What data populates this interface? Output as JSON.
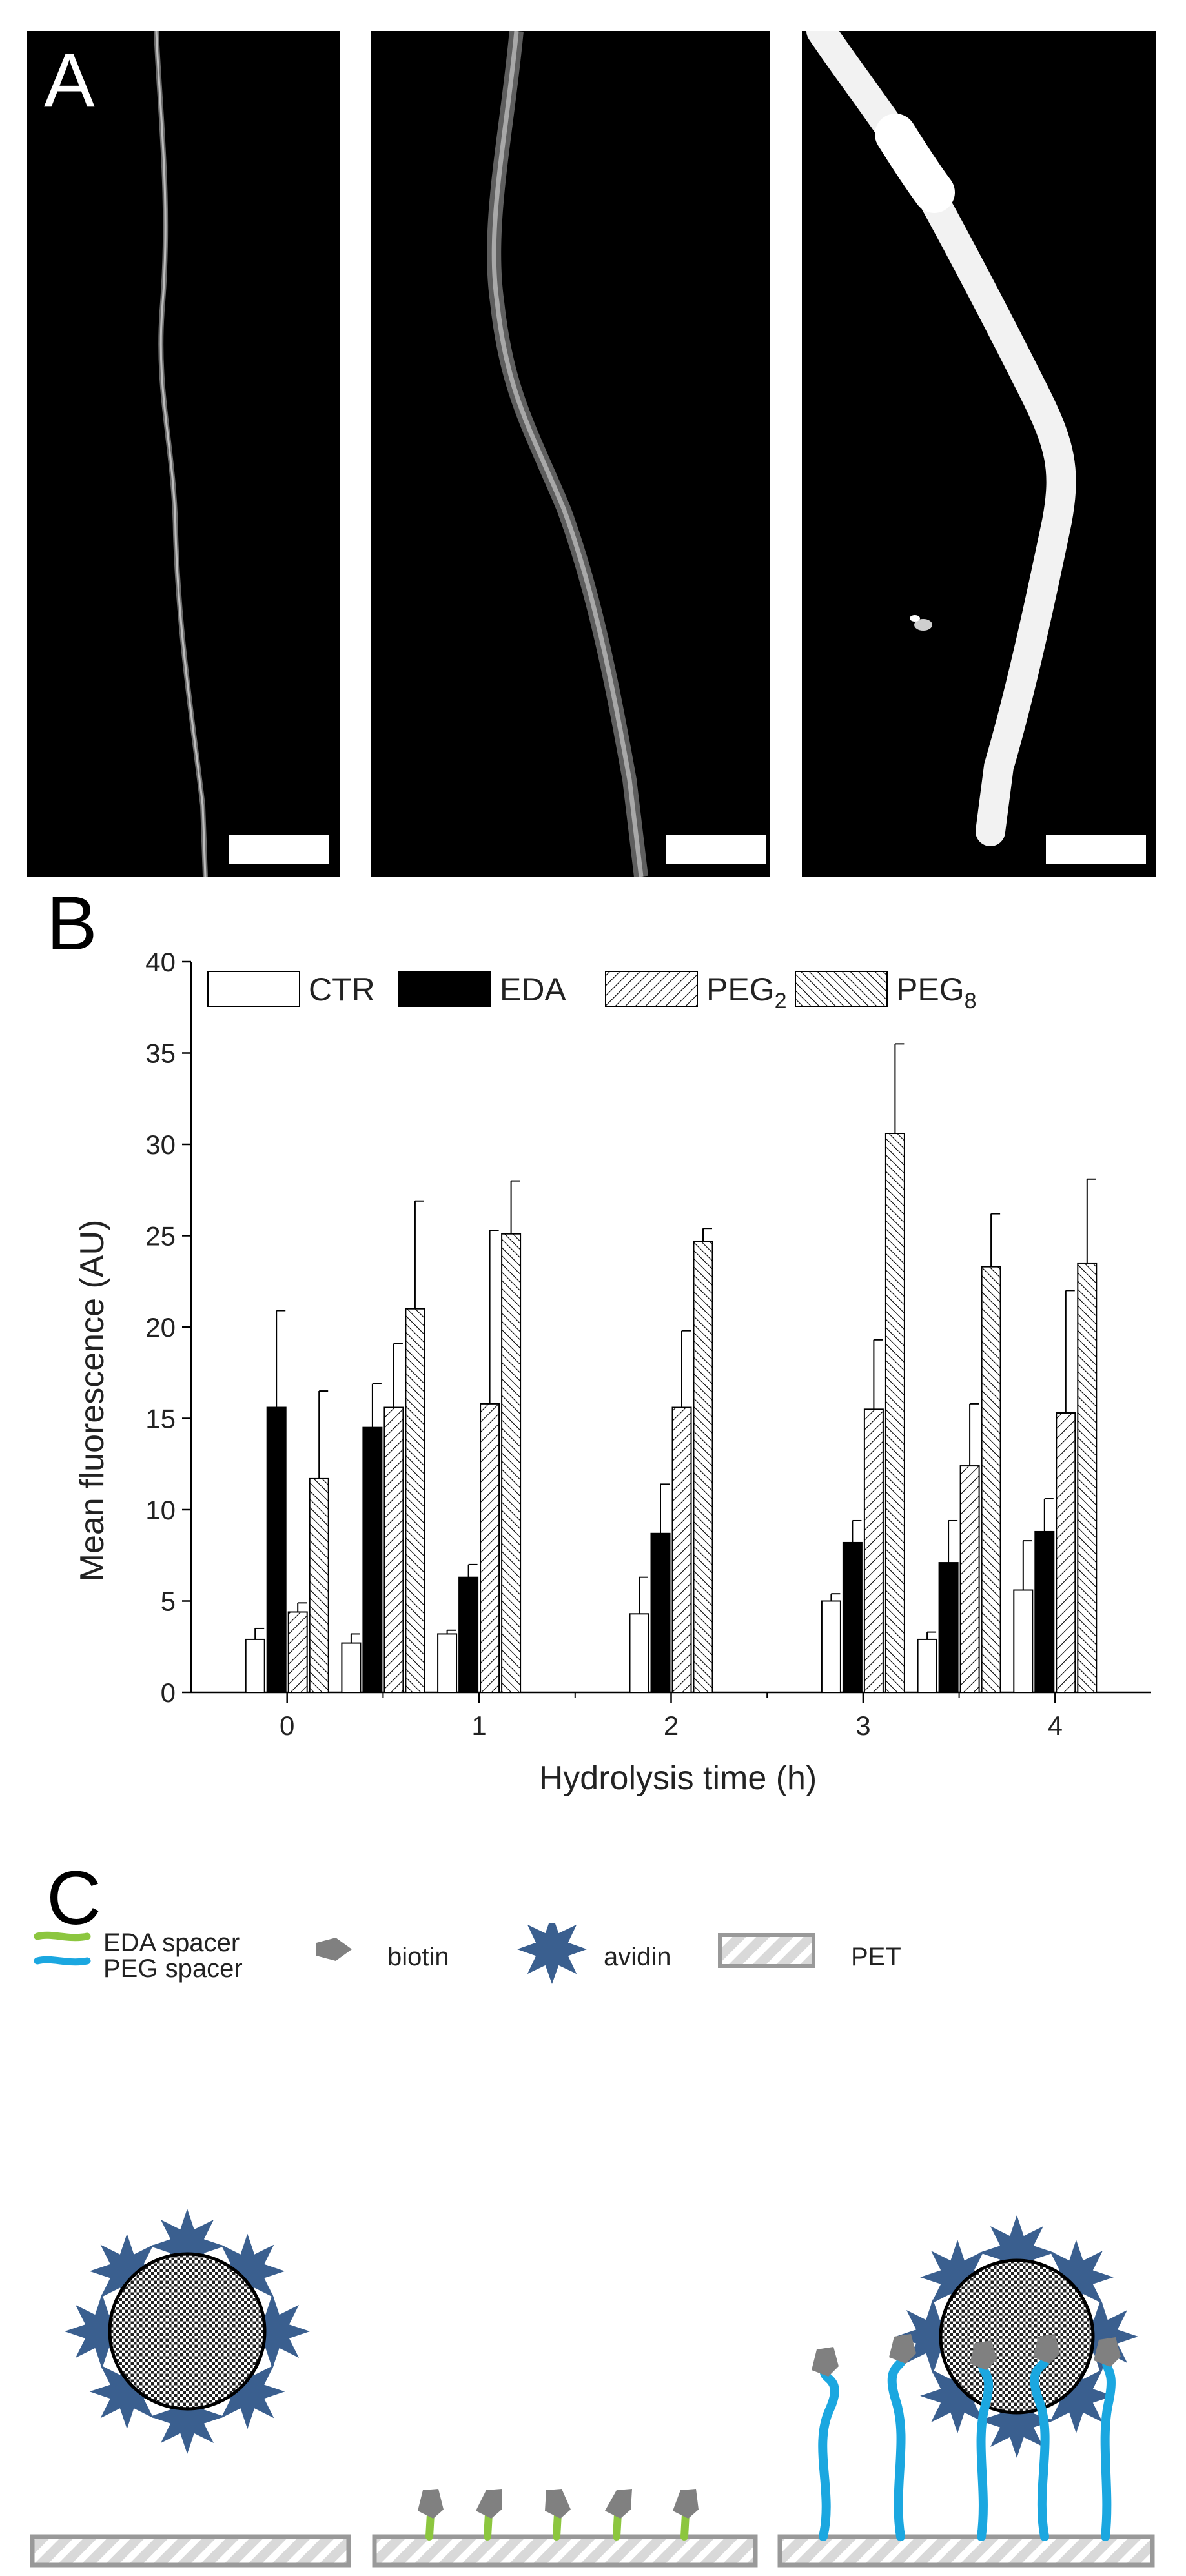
{
  "panels": {
    "a": {
      "letter": "A"
    },
    "b": {
      "letter": "B"
    },
    "c": {
      "letter": "C"
    }
  },
  "chart_data": {
    "type": "bar",
    "xlabel": "Hydrolysis time (h)",
    "ylabel": "Mean fluorescence (AU)",
    "ylim": [
      0,
      40
    ],
    "yticks": [
      0,
      5,
      10,
      15,
      20,
      25,
      30,
      35,
      40
    ],
    "xlim": [
      -0.5,
      4.5
    ],
    "xticks": [
      0,
      1,
      2,
      3,
      4
    ],
    "minor_xticks": [
      0.5,
      1.5,
      2.5,
      3.5
    ],
    "grid": false,
    "legend_position": "top",
    "group_x": [
      0,
      0.5,
      1,
      2,
      3,
      3.5,
      4
    ],
    "series": [
      {
        "name": "CTR",
        "fill": "white",
        "values": [
          2.9,
          2.7,
          3.2,
          4.3,
          5.0,
          2.9,
          5.6
        ],
        "errors": [
          0.6,
          0.5,
          0.2,
          2.0,
          0.4,
          0.4,
          2.7
        ]
      },
      {
        "name": "EDA",
        "fill": "black",
        "values": [
          15.6,
          14.5,
          6.3,
          8.7,
          8.2,
          7.1,
          8.8
        ],
        "errors": [
          5.3,
          2.4,
          0.7,
          2.7,
          1.2,
          2.3,
          1.8
        ]
      },
      {
        "name": "PEG2",
        "fill": "hatch-forward",
        "values": [
          4.4,
          15.6,
          15.8,
          15.6,
          15.5,
          12.4,
          15.3
        ],
        "errors": [
          0.5,
          3.5,
          9.5,
          4.2,
          3.8,
          3.4,
          6.7
        ]
      },
      {
        "name": "PEG8",
        "fill": "hatch-backward",
        "values": [
          11.7,
          21.0,
          25.1,
          24.7,
          30.6,
          23.3,
          23.5
        ],
        "errors": [
          4.8,
          5.9,
          2.9,
          0.7,
          4.9,
          2.9,
          4.6
        ]
      }
    ],
    "legend": [
      {
        "text": "CTR",
        "sub": ""
      },
      {
        "text": "EDA",
        "sub": ""
      },
      {
        "text": "PEG",
        "sub": "2"
      },
      {
        "text": "PEG",
        "sub": "8"
      }
    ]
  },
  "schematic": {
    "legend": {
      "eda_spacer": "EDA spacer",
      "peg_spacer": "PEG spacer",
      "biotin": "biotin",
      "avidin": "avidin",
      "pet": "PET"
    },
    "colors": {
      "eda": "#8cc63f",
      "peg": "#1ba7e0",
      "biotin": "#808080",
      "avidin": "#3a5f8f",
      "pet_fill": "#d9d9d9",
      "pet_stroke": "#999999"
    }
  }
}
